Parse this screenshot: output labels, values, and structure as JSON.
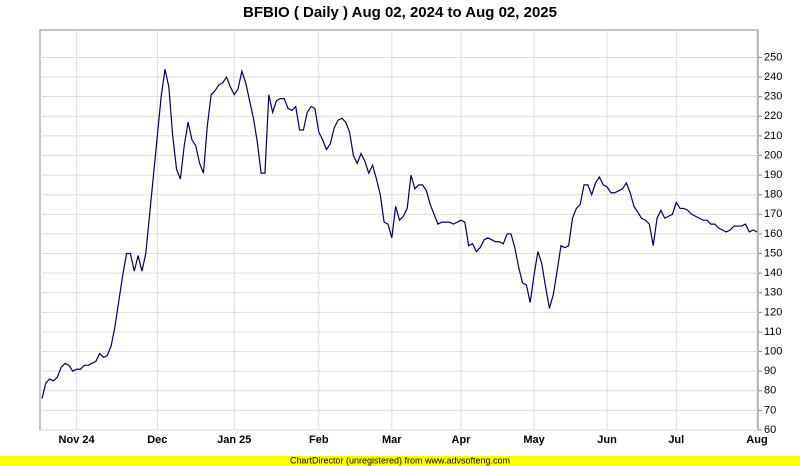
{
  "chart_data": {
    "type": "line",
    "title": "BFBIO ( Daily ) Aug 02, 2024 to Aug 02, 2025",
    "footer": "ChartDirector (unregistered) from www.advsofteng.com",
    "categories": [
      null,
      null,
      null,
      null,
      null,
      null,
      null,
      null,
      null,
      "Nov 24",
      null,
      null,
      null,
      null,
      null,
      null,
      null,
      null,
      null,
      null,
      null,
      null,
      null,
      null,
      null,
      null,
      null,
      null,
      null,
      null,
      "Dec",
      null,
      null,
      null,
      null,
      null,
      null,
      null,
      null,
      null,
      null,
      null,
      null,
      null,
      null,
      null,
      null,
      null,
      null,
      null,
      "Jan 25",
      null,
      null,
      null,
      null,
      null,
      null,
      null,
      null,
      null,
      null,
      null,
      null,
      null,
      null,
      null,
      null,
      null,
      null,
      null,
      null,
      null,
      "Feb",
      null,
      null,
      null,
      null,
      null,
      null,
      null,
      null,
      null,
      null,
      null,
      null,
      null,
      null,
      null,
      null,
      null,
      null,
      "Mar",
      null,
      null,
      null,
      null,
      null,
      null,
      null,
      null,
      null,
      null,
      null,
      null,
      null,
      null,
      null,
      null,
      null,
      "Apr",
      null,
      null,
      null,
      null,
      null,
      null,
      null,
      null,
      null,
      null,
      null,
      null,
      null,
      null,
      null,
      null,
      null,
      null,
      "May",
      null,
      null,
      null,
      null,
      null,
      null,
      null,
      null,
      null,
      null,
      null,
      null,
      null,
      null,
      null,
      null,
      null,
      null,
      "Jun",
      null,
      null,
      null,
      null,
      null,
      null,
      null,
      null,
      null,
      null,
      null,
      null,
      null,
      null,
      null,
      null,
      null,
      "Jul",
      null,
      null,
      null,
      null,
      null,
      null,
      null,
      null,
      null,
      null,
      null,
      null,
      null,
      null,
      null,
      null,
      null,
      null,
      null,
      null,
      "Aug"
    ],
    "series": [
      {
        "name": "BFBIO",
        "color": "#000060",
        "values": [
          76,
          84,
          86,
          85,
          87,
          92,
          94,
          93,
          90,
          91,
          91,
          93,
          93,
          94,
          95,
          99,
          97,
          98,
          103,
          113,
          126,
          139,
          150,
          150,
          141,
          149,
          141,
          150,
          170,
          190,
          210,
          230,
          244,
          235,
          210,
          193,
          188,
          205,
          217,
          208,
          205,
          196,
          191,
          215,
          231,
          233,
          236,
          237,
          240,
          235,
          231,
          234,
          243,
          237,
          228,
          219,
          207,
          191,
          191,
          231,
          222,
          228,
          229,
          229,
          224,
          223,
          225,
          213,
          213,
          222,
          225,
          224,
          212,
          208,
          203,
          206,
          214,
          218,
          219,
          217,
          212,
          200,
          196,
          201,
          197,
          191,
          195,
          188,
          180,
          166,
          165,
          158,
          174,
          167,
          169,
          173,
          190,
          183,
          185,
          185,
          182,
          175,
          170,
          165,
          166,
          166,
          166,
          165,
          166,
          167,
          166,
          154,
          155,
          151,
          153,
          157,
          158,
          157,
          156,
          156,
          155,
          160,
          160,
          153,
          143,
          135,
          134,
          125,
          139,
          151,
          145,
          133,
          122,
          129,
          141,
          154,
          153,
          154,
          168,
          173,
          175,
          185,
          185,
          180,
          186,
          189,
          185,
          184,
          181,
          181,
          182,
          183,
          186,
          181,
          174,
          171,
          168,
          167,
          165,
          154,
          168,
          172,
          168,
          169,
          170,
          176,
          173,
          173,
          172,
          170,
          169,
          168,
          167,
          167,
          165,
          165,
          163,
          162,
          161,
          162,
          164,
          164,
          164,
          165,
          161,
          162,
          161
        ]
      }
    ],
    "ylim": [
      60,
      264
    ],
    "yticks": [
      60,
      70,
      80,
      90,
      100,
      110,
      120,
      130,
      140,
      150,
      160,
      170,
      180,
      190,
      200,
      210,
      220,
      230,
      240,
      250
    ],
    "grid": true
  }
}
